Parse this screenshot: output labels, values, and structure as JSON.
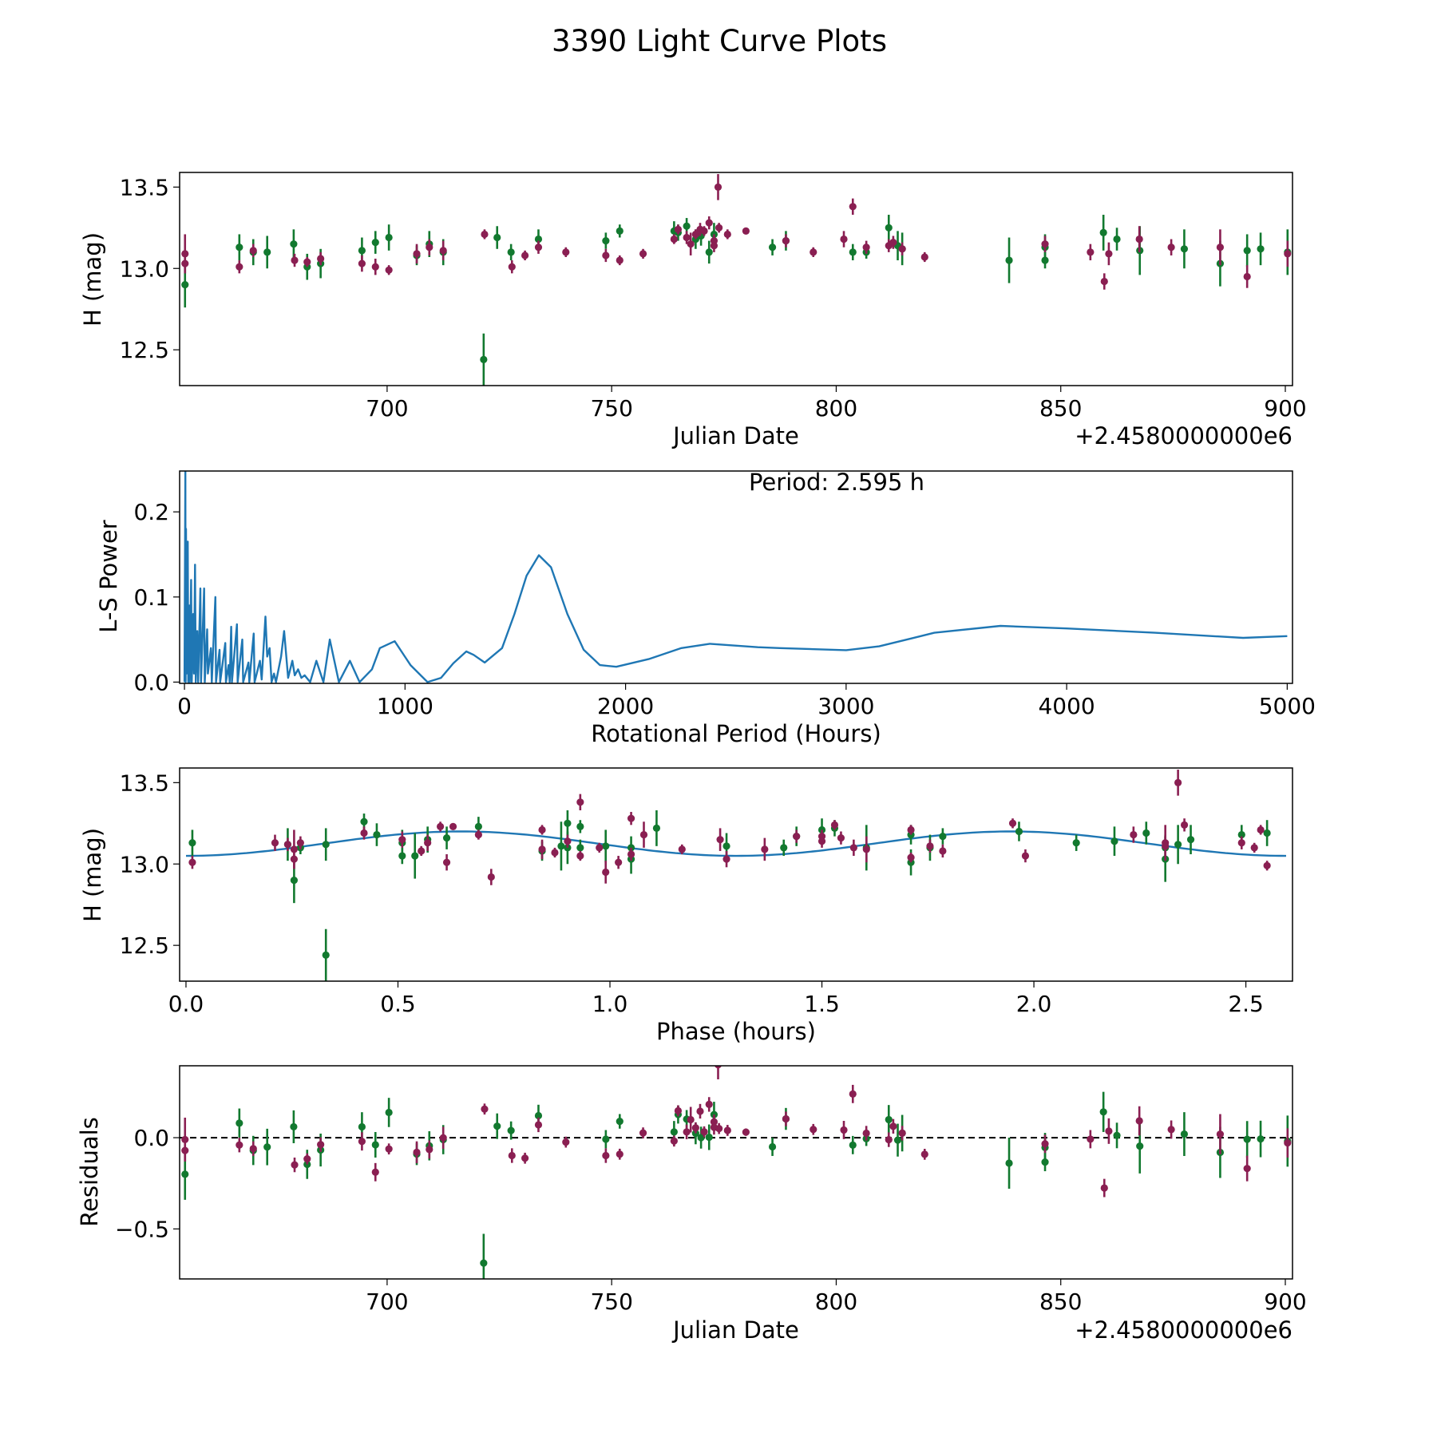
{
  "title": "3390 Light Curve Plots",
  "colors": {
    "band_a": "#12792f",
    "band_b": "#8a1f52",
    "curve": "#1f77b4"
  },
  "chart_data": [
    {
      "id": "lightcurve",
      "type": "scatter",
      "xlabel": "Julian Date",
      "x_offset_label": "+2.4580000000e6",
      "ylabel": "H (mag)",
      "xlim": [
        653.8,
        901.6
      ],
      "ylim": [
        12.28,
        13.59
      ],
      "xticks": [
        700,
        750,
        800,
        850,
        900
      ],
      "xtick_labels": [
        "700",
        "750",
        "800",
        "850",
        "900"
      ],
      "yticks": [
        12.5,
        13.0,
        13.5
      ],
      "ytick_labels": [
        "12.5",
        "13.0",
        "13.5"
      ],
      "series": [
        {
          "name": "green",
          "color": "#12792f",
          "points": [
            [
              655.0,
              12.9,
              0.14
            ],
            [
              667.1,
              13.13,
              0.08
            ],
            [
              670.2,
              13.1,
              0.08
            ],
            [
              673.3,
              13.1,
              0.1
            ],
            [
              679.2,
              13.15,
              0.09
            ],
            [
              682.2,
              13.01,
              0.08
            ],
            [
              685.2,
              13.03,
              0.09
            ],
            [
              694.4,
              13.11,
              0.08
            ],
            [
              697.4,
              13.16,
              0.07
            ],
            [
              700.4,
              13.19,
              0.08
            ],
            [
              706.6,
              13.08,
              0.06
            ],
            [
              709.4,
              13.15,
              0.08
            ],
            [
              712.5,
              13.1,
              0.08
            ],
            [
              721.5,
              12.44,
              0.16
            ],
            [
              724.5,
              13.19,
              0.07
            ],
            [
              727.6,
              13.1,
              0.05
            ],
            [
              733.7,
              13.18,
              0.06
            ],
            [
              748.7,
              13.17,
              0.05
            ],
            [
              751.8,
              13.23,
              0.04
            ],
            [
              763.9,
              13.23,
              0.06
            ],
            [
              764.8,
              13.22,
              0.05
            ],
            [
              766.7,
              13.26,
              0.05
            ],
            [
              768.7,
              13.18,
              0.06
            ],
            [
              769.9,
              13.2,
              0.06
            ],
            [
              771.7,
              13.1,
              0.07
            ],
            [
              772.8,
              13.21,
              0.07
            ],
            [
              785.8,
              13.13,
              0.05
            ],
            [
              788.8,
              13.17,
              0.06
            ],
            [
              803.7,
              13.1,
              0.05
            ],
            [
              806.7,
              13.1,
              0.04
            ],
            [
              811.7,
              13.25,
              0.08
            ],
            [
              813.7,
              13.14,
              0.09
            ],
            [
              814.7,
              13.12,
              0.1
            ],
            [
              838.5,
              13.05,
              0.14
            ],
            [
              846.5,
              13.13,
              0.08
            ],
            [
              846.5,
              13.05,
              0.05
            ],
            [
              859.5,
              13.22,
              0.11
            ],
            [
              862.5,
              13.18,
              0.07
            ],
            [
              867.6,
              13.11,
              0.15
            ],
            [
              877.5,
              13.12,
              0.12
            ],
            [
              885.5,
              13.03,
              0.14
            ],
            [
              891.5,
              13.11,
              0.1
            ],
            [
              894.5,
              13.12,
              0.1
            ],
            [
              900.5,
              13.1,
              0.14
            ]
          ]
        },
        {
          "name": "maroon",
          "color": "#8a1f52",
          "points": [
            [
              655.0,
              13.09,
              0.12
            ],
            [
              655.0,
              13.03,
              0.06
            ],
            [
              667.1,
              13.01,
              0.04
            ],
            [
              670.2,
              13.11,
              0.04
            ],
            [
              679.4,
              13.05,
              0.04
            ],
            [
              682.2,
              13.04,
              0.03
            ],
            [
              685.2,
              13.06,
              0.04
            ],
            [
              694.4,
              13.03,
              0.05
            ],
            [
              697.4,
              13.01,
              0.05
            ],
            [
              700.4,
              12.99,
              0.03
            ],
            [
              706.6,
              13.09,
              0.06
            ],
            [
              709.4,
              13.13,
              0.05
            ],
            [
              712.5,
              13.11,
              0.06
            ],
            [
              721.7,
              13.21,
              0.03
            ],
            [
              727.8,
              13.01,
              0.04
            ],
            [
              730.7,
              13.08,
              0.03
            ],
            [
              733.7,
              13.13,
              0.04
            ],
            [
              739.8,
              13.1,
              0.03
            ],
            [
              748.7,
              13.08,
              0.04
            ],
            [
              751.8,
              13.05,
              0.03
            ],
            [
              757.0,
              13.09,
              0.03
            ],
            [
              763.9,
              13.18,
              0.03
            ],
            [
              764.8,
              13.24,
              0.03
            ],
            [
              766.7,
              13.19,
              0.04
            ],
            [
              767.6,
              13.15,
              0.07
            ],
            [
              768.7,
              13.21,
              0.03
            ],
            [
              769.7,
              13.24,
              0.04
            ],
            [
              770.6,
              13.23,
              0.03
            ],
            [
              771.7,
              13.28,
              0.04
            ],
            [
              772.8,
              13.17,
              0.04
            ],
            [
              772.8,
              13.14,
              0.04
            ],
            [
              773.7,
              13.5,
              0.08
            ],
            [
              773.9,
              13.25,
              0.03
            ],
            [
              775.8,
              13.21,
              0.03
            ],
            [
              779.9,
              13.23,
              0.02
            ],
            [
              788.8,
              13.17,
              0.04
            ],
            [
              794.9,
              13.1,
              0.03
            ],
            [
              801.7,
              13.18,
              0.05
            ],
            [
              803.7,
              13.38,
              0.05
            ],
            [
              806.7,
              13.13,
              0.04
            ],
            [
              811.7,
              13.14,
              0.04
            ],
            [
              812.7,
              13.16,
              0.04
            ],
            [
              814.7,
              13.12,
              0.04
            ],
            [
              819.7,
              13.07,
              0.03
            ],
            [
              846.5,
              13.15,
              0.05
            ],
            [
              856.6,
              13.1,
              0.05
            ],
            [
              859.7,
              12.92,
              0.05
            ],
            [
              860.7,
              13.09,
              0.07
            ],
            [
              867.5,
              13.18,
              0.08
            ],
            [
              874.6,
              13.13,
              0.05
            ],
            [
              885.5,
              13.13,
              0.11
            ],
            [
              891.5,
              12.95,
              0.07
            ],
            [
              900.5,
              13.09,
              0.08
            ]
          ]
        }
      ]
    },
    {
      "id": "periodogram",
      "type": "line",
      "xlabel": "Rotational Period (Hours)",
      "ylabel": "L-S Power",
      "annotation": "Period: 2.595 h",
      "xlim": [
        -22,
        5024
      ],
      "ylim": [
        -0.0015,
        0.248
      ],
      "xticks": [
        0,
        1000,
        2000,
        3000,
        4000,
        5000
      ],
      "xtick_labels": [
        "0",
        "1000",
        "2000",
        "3000",
        "4000",
        "5000"
      ],
      "yticks": [
        0.0,
        0.1,
        0.2
      ],
      "ytick_labels": [
        "0.0",
        "0.1",
        "0.2"
      ],
      "x": [
        0,
        4,
        5,
        7,
        9,
        15,
        17,
        22,
        24,
        30,
        33,
        40,
        43,
        48,
        51,
        58,
        62,
        72,
        75,
        89,
        92,
        103,
        106,
        120,
        124,
        140,
        143,
        159,
        162,
        185,
        188,
        200,
        205,
        212,
        215,
        238,
        241,
        262,
        266,
        290,
        294,
        314,
        318,
        342,
        350,
        367,
        375,
        386,
        395,
        406,
        415,
        438,
        452,
        470,
        489,
        500,
        515,
        530,
        545,
        570,
        598,
        630,
        659,
        700,
        750,
        794,
        850,
        886,
        953,
        1025,
        1102,
        1163,
        1219,
        1278,
        1311,
        1361,
        1440,
        1496,
        1551,
        1607,
        1662,
        1736,
        1810,
        1884,
        1958,
        2105,
        2253,
        2382,
        2600,
        2700,
        3000,
        3150,
        3400,
        3700,
        4000,
        4400,
        4800,
        5000
      ],
      "y": [
        0,
        0.25,
        0,
        0.18,
        0.01,
        0.165,
        0,
        0.09,
        0,
        0.12,
        0,
        0.08,
        0.01,
        0.138,
        0,
        0.06,
        0,
        0.11,
        0,
        0.11,
        0,
        0.062,
        0.01,
        0.04,
        0,
        0.1,
        0,
        0.038,
        0,
        0.046,
        0,
        0.02,
        0,
        0.065,
        0,
        0.068,
        0,
        0.05,
        0,
        0.023,
        0,
        0.057,
        0,
        0.025,
        0.003,
        0.077,
        0.03,
        0.04,
        0,
        0.01,
        0,
        0.03,
        0.06,
        0.005,
        0.025,
        0.008,
        0.015,
        0.005,
        0.008,
        0,
        0.025,
        0,
        0.05,
        0,
        0.025,
        0,
        0.015,
        0.04,
        0.048,
        0.02,
        0,
        0.005,
        0.022,
        0.036,
        0.032,
        0.023,
        0.04,
        0.08,
        0.125,
        0.149,
        0.135,
        0.08,
        0.038,
        0.02,
        0.018,
        0.027,
        0.04,
        0.045,
        0.041,
        0.04,
        0.0375,
        0.042,
        0.058,
        0.066,
        0.063,
        0.058,
        0.052,
        0.054
      ]
    },
    {
      "id": "phased",
      "type": "scatter",
      "xlabel": "Phase (hours)",
      "ylabel": "H (mag)",
      "period_hours": 2.595,
      "model": {
        "mean": 13.125,
        "amplitude": 0.075,
        "harmonic": 2
      },
      "xlim": [
        -0.015,
        2.61
      ],
      "ylim": [
        12.28,
        13.59
      ],
      "xticks": [
        0.0,
        0.5,
        1.0,
        1.5,
        2.0,
        2.5
      ],
      "xtick_labels": [
        "0.0",
        "0.5",
        "1.0",
        "1.5",
        "2.0",
        "2.5"
      ],
      "yticks": [
        12.5,
        13.0,
        13.5
      ],
      "ytick_labels": [
        "12.5",
        "13.0",
        "13.5"
      ]
    },
    {
      "id": "residuals",
      "type": "scatter",
      "xlabel": "Julian Date",
      "x_offset_label": "+2.4580000000e6",
      "ylabel": "Residuals",
      "xlim": [
        653.8,
        901.6
      ],
      "ylim": [
        -0.774,
        0.394
      ],
      "xticks": [
        700,
        750,
        800,
        850,
        900
      ],
      "xtick_labels": [
        "700",
        "750",
        "800",
        "850",
        "900"
      ],
      "yticks": [
        -0.5,
        0.0
      ],
      "ytick_labels": [
        "−0.5",
        "0.0"
      ]
    }
  ]
}
